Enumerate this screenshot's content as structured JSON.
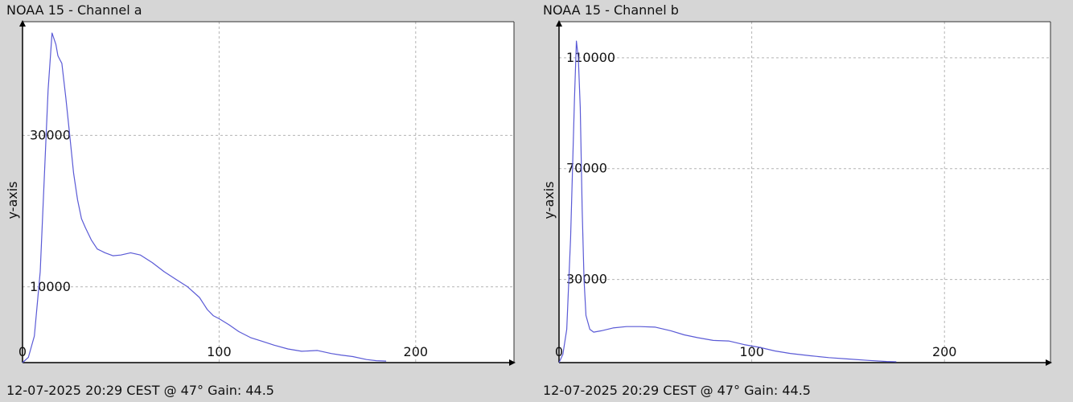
{
  "chart_data": [
    {
      "type": "line",
      "title": "NOAA 15 - Channel a",
      "footer": "12-07-2025 20:29 CEST @ 47° Gain: 44.5",
      "xlabel": "",
      "ylabel": "y-axis",
      "xlim": [
        0,
        250
      ],
      "ylim": [
        0,
        45000
      ],
      "x_ticks": [
        0,
        100,
        200
      ],
      "y_ticks": [
        10000,
        30000
      ],
      "grid": true,
      "line_color": "#5a5ad6",
      "series": [
        {
          "x": [
            0,
            3,
            6,
            9,
            11,
            13,
            15,
            17,
            18,
            19,
            20,
            22,
            24,
            26,
            28,
            30,
            32,
            35,
            38,
            42,
            46,
            50,
            55,
            60,
            66,
            72,
            78,
            84,
            90,
            94,
            97,
            100,
            105,
            110,
            116,
            122,
            128,
            135,
            142,
            150,
            157,
            162,
            168,
            175,
            180,
            185
          ],
          "y": [
            0,
            700,
            3500,
            12000,
            24000,
            36000,
            43500,
            42000,
            40500,
            40000,
            39500,
            35000,
            30000,
            25000,
            21500,
            19000,
            17800,
            16200,
            15000,
            14500,
            14100,
            14200,
            14500,
            14200,
            13200,
            12000,
            11000,
            10000,
            8600,
            7000,
            6200,
            5800,
            5000,
            4100,
            3300,
            2800,
            2300,
            1800,
            1500,
            1600,
            1200,
            1000,
            800,
            400,
            250,
            200
          ]
        }
      ]
    },
    {
      "type": "line",
      "title": "NOAA 15 - Channel b",
      "footer": "12-07-2025 20:29 CEST @ 47° Gain: 44.5",
      "xlabel": "",
      "ylabel": "y-axis",
      "xlim": [
        0,
        255
      ],
      "ylim": [
        0,
        123000
      ],
      "x_ticks": [
        0,
        100,
        200
      ],
      "y_ticks": [
        30000,
        70000,
        110000
      ],
      "grid": true,
      "line_color": "#5a5ad6",
      "series": [
        {
          "x": [
            0,
            2,
            4,
            6,
            8,
            9,
            10,
            11,
            12,
            13,
            14,
            16,
            18,
            22,
            28,
            35,
            42,
            50,
            58,
            65,
            72,
            80,
            88,
            96,
            104,
            112,
            120,
            130,
            140,
            150,
            160,
            170,
            175
          ],
          "y": [
            0,
            3000,
            12000,
            45000,
            95000,
            116000,
            110000,
            92000,
            55000,
            30000,
            17000,
            12000,
            11000,
            11500,
            12500,
            13000,
            13000,
            12800,
            11500,
            10000,
            9000,
            8000,
            7800,
            6500,
            5500,
            4200,
            3300,
            2500,
            1800,
            1300,
            800,
            400,
            300
          ]
        }
      ]
    }
  ]
}
